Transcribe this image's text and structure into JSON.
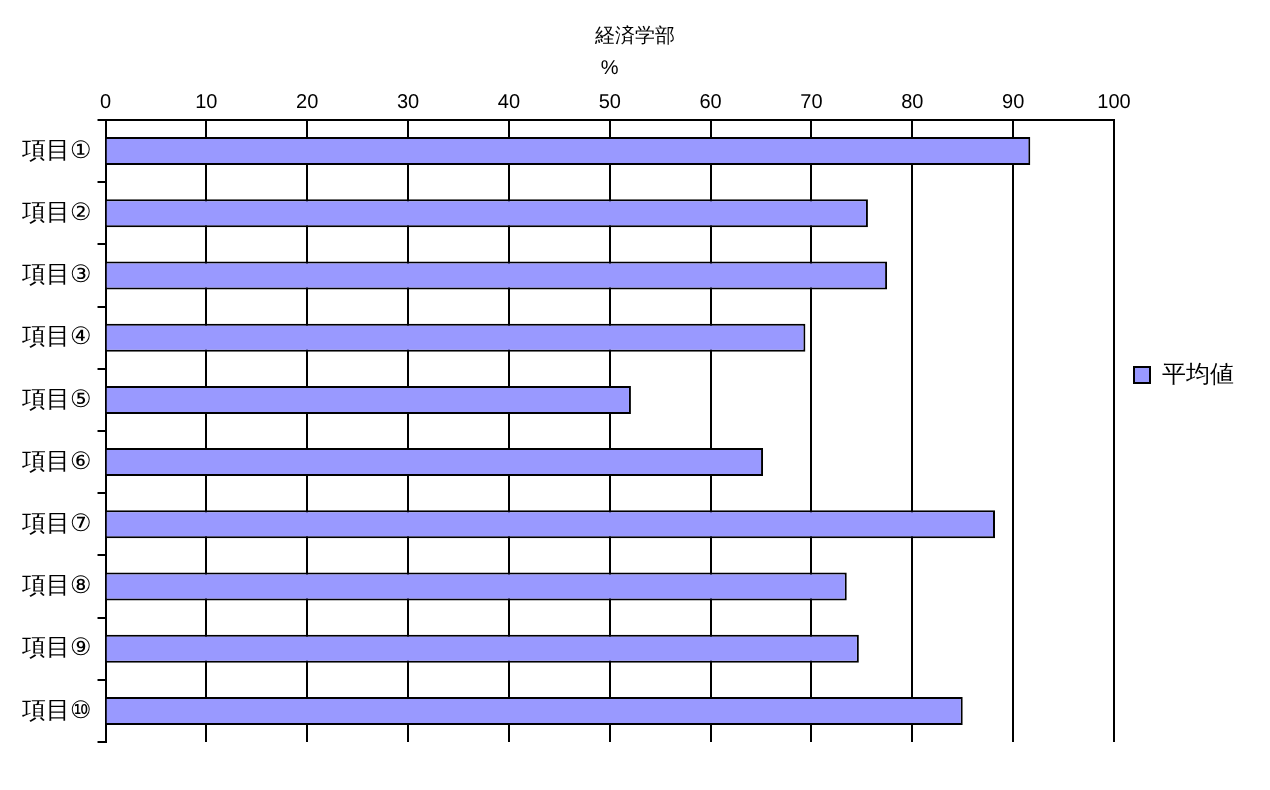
{
  "chart_data": {
    "type": "bar",
    "orientation": "horizontal",
    "title": "経済学部",
    "xlabel": "%",
    "categories": [
      "項目①",
      "項目②",
      "項目③",
      "項目④",
      "項目⑤",
      "項目⑥",
      "項目⑦",
      "項目⑧",
      "項目⑨",
      "項目⑩"
    ],
    "series": [
      {
        "name": "平均値",
        "color": "#9999ff",
        "values": [
          91.7,
          75.6,
          77.5,
          69.4,
          52.1,
          65.2,
          88.2,
          73.5,
          74.7,
          85.0
        ]
      }
    ],
    "xlim": [
      0,
      100
    ],
    "xticks": [
      0,
      10,
      20,
      30,
      40,
      50,
      60,
      70,
      80,
      90,
      100
    ],
    "grid": "x",
    "legend": "right"
  }
}
